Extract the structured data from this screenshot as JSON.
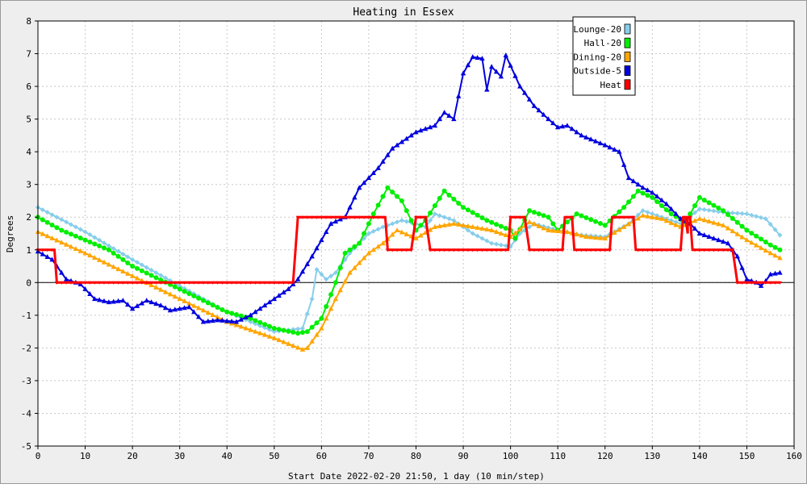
{
  "chart_data": {
    "type": "line",
    "title": "Heating in Essex",
    "xlabel": "Start Date 2022-02-20 21:50, 1 day (10 min/step)",
    "ylabel": "Degrees",
    "xlim": [
      0,
      160
    ],
    "ylim": [
      -5,
      8
    ],
    "xticks": [
      0,
      10,
      20,
      30,
      40,
      50,
      60,
      70,
      80,
      90,
      100,
      110,
      120,
      130,
      140,
      150,
      160
    ],
    "yticks": [
      -5,
      -4,
      -3,
      -2,
      -1,
      0,
      1,
      2,
      3,
      4,
      5,
      6,
      7,
      8
    ],
    "grid": true,
    "legend_position": "top-right",
    "series": [
      {
        "name": "Lounge-20",
        "color": "#87ceeb",
        "marker": "diamond",
        "points": [
          [
            0,
            2.3
          ],
          [
            10,
            1.55
          ],
          [
            20,
            0.7
          ],
          [
            30,
            -0.1
          ],
          [
            40,
            -0.9
          ],
          [
            50,
            -1.5
          ],
          [
            56,
            -1.4
          ],
          [
            58,
            -0.5
          ],
          [
            59,
            0.4
          ],
          [
            61,
            0.1
          ],
          [
            63,
            0.3
          ],
          [
            66,
            0.9
          ],
          [
            70,
            1.5
          ],
          [
            73,
            1.7
          ],
          [
            77,
            1.9
          ],
          [
            80,
            1.8
          ],
          [
            82,
            1.7
          ],
          [
            84,
            2.1
          ],
          [
            88,
            1.9
          ],
          [
            92,
            1.5
          ],
          [
            96,
            1.2
          ],
          [
            100,
            1.1
          ],
          [
            102,
            1.5
          ],
          [
            105,
            1.8
          ],
          [
            110,
            1.6
          ],
          [
            115,
            1.45
          ],
          [
            120,
            1.4
          ],
          [
            125,
            1.8
          ],
          [
            128,
            2.2
          ],
          [
            132,
            2.0
          ],
          [
            136,
            1.8
          ],
          [
            140,
            2.25
          ],
          [
            145,
            2.15
          ],
          [
            150,
            2.1
          ],
          [
            154,
            1.95
          ],
          [
            157,
            1.45
          ]
        ]
      },
      {
        "name": "Hall-20",
        "color": "#00ee00",
        "marker": "circle",
        "points": [
          [
            0,
            2.0
          ],
          [
            5,
            1.6
          ],
          [
            10,
            1.3
          ],
          [
            15,
            1.0
          ],
          [
            20,
            0.5
          ],
          [
            25,
            0.15
          ],
          [
            30,
            -0.2
          ],
          [
            40,
            -0.9
          ],
          [
            45,
            -1.1
          ],
          [
            50,
            -1.4
          ],
          [
            55,
            -1.55
          ],
          [
            57,
            -1.5
          ],
          [
            60,
            -1.1
          ],
          [
            63,
            0.0
          ],
          [
            65,
            0.9
          ],
          [
            68,
            1.2
          ],
          [
            71,
            2.1
          ],
          [
            74,
            2.9
          ],
          [
            77,
            2.5
          ],
          [
            80,
            1.6
          ],
          [
            82,
            1.9
          ],
          [
            86,
            2.8
          ],
          [
            90,
            2.3
          ],
          [
            95,
            1.9
          ],
          [
            100,
            1.6
          ],
          [
            101,
            1.35
          ],
          [
            104,
            2.2
          ],
          [
            108,
            2.0
          ],
          [
            110,
            1.6
          ],
          [
            114,
            2.1
          ],
          [
            120,
            1.75
          ],
          [
            124,
            2.3
          ],
          [
            127,
            2.8
          ],
          [
            130,
            2.6
          ],
          [
            134,
            2.1
          ],
          [
            137,
            1.85
          ],
          [
            140,
            2.6
          ],
          [
            145,
            2.2
          ],
          [
            150,
            1.6
          ],
          [
            155,
            1.15
          ],
          [
            157,
            1.0
          ]
        ]
      },
      {
        "name": "Dining-20",
        "color": "#ffa500",
        "marker": "triangle",
        "points": [
          [
            0,
            1.55
          ],
          [
            10,
            0.9
          ],
          [
            20,
            0.2
          ],
          [
            30,
            -0.5
          ],
          [
            40,
            -1.2
          ],
          [
            50,
            -1.7
          ],
          [
            56,
            -2.05
          ],
          [
            57,
            -2.0
          ],
          [
            60,
            -1.4
          ],
          [
            63,
            -0.5
          ],
          [
            66,
            0.3
          ],
          [
            70,
            0.9
          ],
          [
            73,
            1.2
          ],
          [
            76,
            1.6
          ],
          [
            80,
            1.35
          ],
          [
            84,
            1.7
          ],
          [
            88,
            1.8
          ],
          [
            92,
            1.7
          ],
          [
            96,
            1.6
          ],
          [
            100,
            1.4
          ],
          [
            104,
            1.85
          ],
          [
            108,
            1.6
          ],
          [
            112,
            1.55
          ],
          [
            116,
            1.4
          ],
          [
            120,
            1.35
          ],
          [
            124,
            1.7
          ],
          [
            128,
            2.05
          ],
          [
            132,
            1.95
          ],
          [
            136,
            1.7
          ],
          [
            140,
            1.95
          ],
          [
            145,
            1.75
          ],
          [
            150,
            1.3
          ],
          [
            155,
            0.9
          ],
          [
            157,
            0.75
          ]
        ]
      },
      {
        "name": "Outside-5",
        "color": "#0000dd",
        "marker": "triangle",
        "points": [
          [
            0,
            0.95
          ],
          [
            3,
            0.7
          ],
          [
            6,
            0.1
          ],
          [
            9,
            -0.05
          ],
          [
            12,
            -0.5
          ],
          [
            15,
            -0.6
          ],
          [
            18,
            -0.55
          ],
          [
            20,
            -0.8
          ],
          [
            23,
            -0.55
          ],
          [
            26,
            -0.7
          ],
          [
            28,
            -0.85
          ],
          [
            32,
            -0.75
          ],
          [
            35,
            -1.2
          ],
          [
            38,
            -1.15
          ],
          [
            42,
            -1.2
          ],
          [
            45,
            -1.0
          ],
          [
            50,
            -0.5
          ],
          [
            53,
            -0.2
          ],
          [
            55,
            0.1
          ],
          [
            58,
            0.8
          ],
          [
            62,
            1.8
          ],
          [
            65,
            2.0
          ],
          [
            68,
            2.9
          ],
          [
            72,
            3.5
          ],
          [
            75,
            4.1
          ],
          [
            80,
            4.6
          ],
          [
            84,
            4.8
          ],
          [
            86,
            5.2
          ],
          [
            88,
            5.0
          ],
          [
            90,
            6.4
          ],
          [
            92,
            6.9
          ],
          [
            94,
            6.85
          ],
          [
            95,
            5.9
          ],
          [
            96,
            6.6
          ],
          [
            98,
            6.3
          ],
          [
            99,
            6.95
          ],
          [
            102,
            6.0
          ],
          [
            105,
            5.4
          ],
          [
            108,
            5.0
          ],
          [
            110,
            4.75
          ],
          [
            112,
            4.8
          ],
          [
            115,
            4.5
          ],
          [
            120,
            4.2
          ],
          [
            123,
            4.0
          ],
          [
            125,
            3.2
          ],
          [
            128,
            2.9
          ],
          [
            130,
            2.75
          ],
          [
            133,
            2.4
          ],
          [
            136,
            1.95
          ],
          [
            138,
            1.8
          ],
          [
            140,
            1.5
          ],
          [
            143,
            1.35
          ],
          [
            146,
            1.2
          ],
          [
            148,
            0.8
          ],
          [
            150,
            0.1
          ],
          [
            152,
            0.0
          ],
          [
            153,
            -0.1
          ],
          [
            154,
            0.05
          ],
          [
            155,
            0.25
          ],
          [
            157,
            0.3
          ]
        ]
      },
      {
        "name": "Heat",
        "color": "#ff0000",
        "marker": "none",
        "points": [
          [
            0,
            1
          ],
          [
            3.5,
            1
          ],
          [
            4,
            0
          ],
          [
            54,
            0
          ],
          [
            55,
            2
          ],
          [
            73.5,
            2
          ],
          [
            74,
            1
          ],
          [
            79,
            1
          ],
          [
            80,
            2
          ],
          [
            82,
            2
          ],
          [
            83,
            1
          ],
          [
            99.5,
            1
          ],
          [
            100,
            2
          ],
          [
            103,
            2
          ],
          [
            104,
            1
          ],
          [
            111,
            1
          ],
          [
            111.5,
            2
          ],
          [
            113,
            2
          ],
          [
            113.5,
            1
          ],
          [
            121,
            1
          ],
          [
            121.5,
            2
          ],
          [
            126,
            2
          ],
          [
            126.5,
            1
          ],
          [
            136,
            1
          ],
          [
            136.5,
            2
          ],
          [
            137,
            2
          ],
          [
            137.5,
            1.5
          ],
          [
            137.5,
            2
          ],
          [
            138,
            2
          ],
          [
            138.5,
            1
          ],
          [
            147,
            1
          ],
          [
            148,
            0
          ],
          [
            157,
            0
          ]
        ]
      }
    ]
  }
}
